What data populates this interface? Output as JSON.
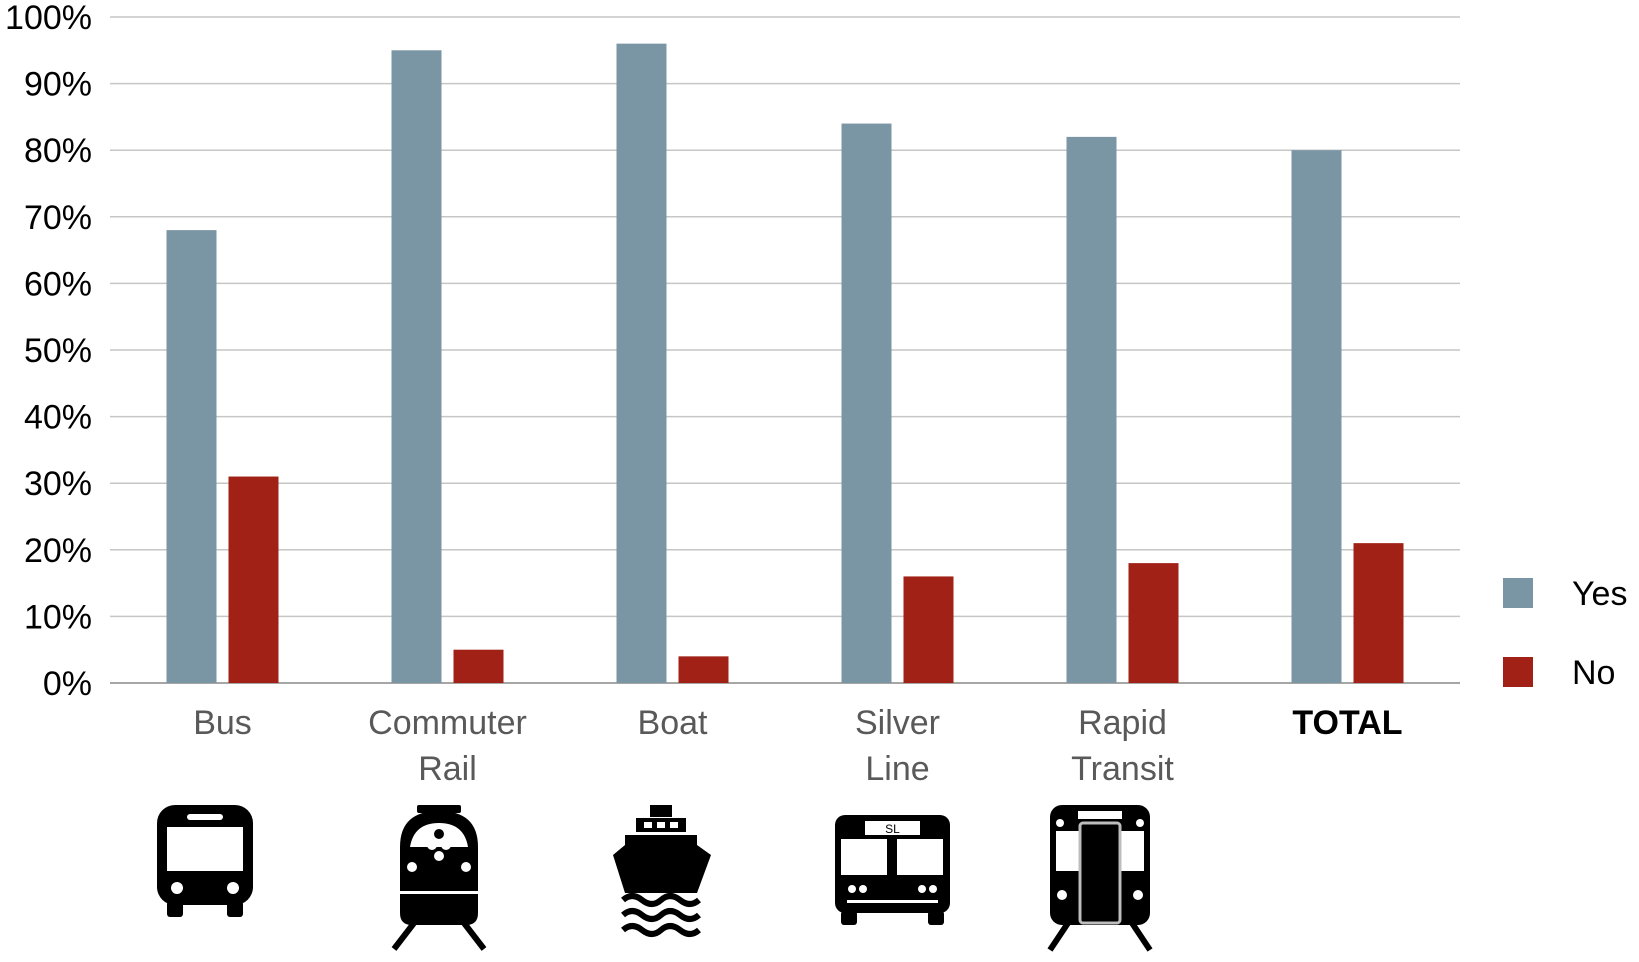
{
  "chart_data": {
    "type": "bar",
    "title": "",
    "xlabel": "",
    "ylabel": "",
    "ylim": [
      0,
      100
    ],
    "yticks": [
      "0%",
      "10%",
      "20%",
      "30%",
      "40%",
      "50%",
      "60%",
      "70%",
      "80%",
      "90%",
      "100%"
    ],
    "grid": true,
    "legend_position": "right",
    "categories": [
      {
        "lines": [
          "Bus"
        ],
        "bold": false,
        "icon": "bus-icon"
      },
      {
        "lines": [
          "Commuter",
          "Rail"
        ],
        "bold": false,
        "icon": "commuter-rail-icon"
      },
      {
        "lines": [
          "Boat"
        ],
        "bold": false,
        "icon": "boat-icon"
      },
      {
        "lines": [
          "Silver",
          "Line"
        ],
        "bold": false,
        "icon": "silver-line-bus-icon"
      },
      {
        "lines": [
          "Rapid",
          "Transit"
        ],
        "bold": false,
        "icon": "rapid-transit-train-icon"
      },
      {
        "lines": [
          "TOTAL"
        ],
        "bold": true,
        "icon": ""
      }
    ],
    "series": [
      {
        "name": "Yes",
        "color": "#7a95a3",
        "values": [
          68,
          95,
          96,
          84,
          82,
          80
        ]
      },
      {
        "name": "No",
        "color": "#a12116",
        "values": [
          31,
          5,
          4,
          16,
          18,
          21
        ]
      }
    ],
    "icon_label": "SL"
  }
}
